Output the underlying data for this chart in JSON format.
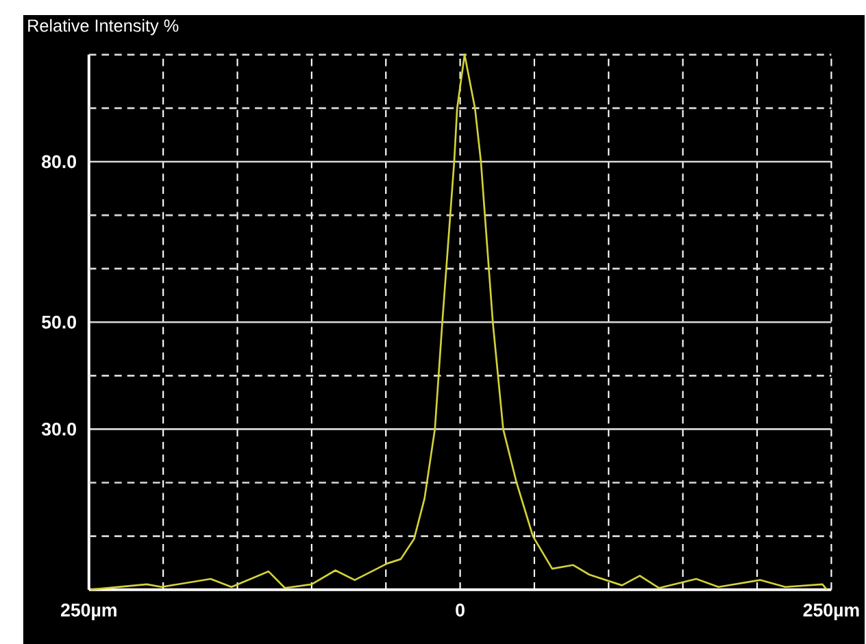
{
  "chart_data": {
    "type": "line",
    "ylabel": "Relative Intensity %",
    "x": [
      -249,
      -211,
      -201,
      -168,
      -154,
      -129,
      -118,
      -100,
      -84,
      -71,
      -49,
      -40,
      -31,
      -24,
      -17,
      -12,
      -4,
      -2,
      3,
      10,
      14,
      22,
      29,
      38,
      49,
      62,
      76,
      87,
      109,
      121,
      134,
      159,
      174,
      202,
      219,
      244,
      247
    ],
    "series": [
      {
        "color": "#d2d23a",
        "values": [
          0,
          1,
          0.5,
          2,
          0.5,
          3.4,
          0.3,
          1,
          3.6,
          1.8,
          4.9,
          5.7,
          9.5,
          17,
          30,
          50,
          80,
          90,
          100,
          90,
          80,
          50,
          30,
          20,
          10,
          3.9,
          4.6,
          2.8,
          0.8,
          2.6,
          0.3,
          2,
          0.5,
          1.8,
          0.5,
          1,
          0
        ]
      }
    ],
    "xlim": [
      -250,
      250
    ],
    "ylim": [
      0,
      100
    ],
    "xticks": [
      {
        "value": -250,
        "label": "250µm"
      },
      {
        "value": -200,
        "label": null
      },
      {
        "value": -150,
        "label": null
      },
      {
        "value": -100,
        "label": null
      },
      {
        "value": -50,
        "label": null
      },
      0,
      {
        "value": 50,
        "label": null
      },
      {
        "value": 100,
        "label": null
      },
      {
        "value": 150,
        "label": null
      },
      {
        "value": 200,
        "label": null
      },
      {
        "value": 250,
        "label": "250µm"
      }
    ],
    "yticks": [
      {
        "value": 10,
        "label": null
      },
      {
        "value": 20,
        "label": null
      },
      {
        "value": 30,
        "label": "30.0"
      },
      {
        "value": 40,
        "label": null
      },
      {
        "value": 50,
        "label": "50.0"
      },
      {
        "value": 60,
        "label": null
      },
      {
        "value": 70,
        "label": null
      },
      {
        "value": 80,
        "label": "80.0"
      },
      {
        "value": 90,
        "label": null
      },
      {
        "value": 100,
        "label": null
      }
    ],
    "grid": true
  }
}
